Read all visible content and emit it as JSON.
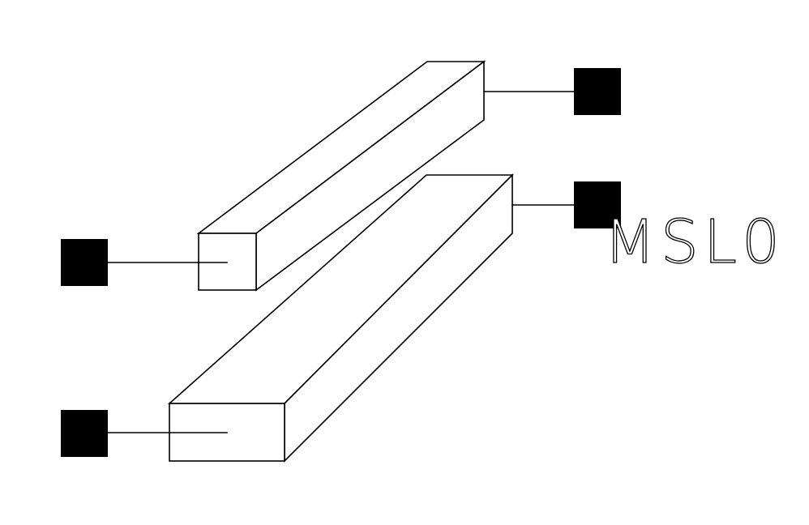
{
  "component": {
    "label": "MSL0",
    "type": "coupled-microstrip-lines",
    "line_count": 2,
    "pin_count": 4
  },
  "colors": {
    "background": "#ffffff",
    "stroke": "#000000",
    "pin_fill": "#000000"
  },
  "icons": {
    "pin": "filled-square-pin"
  }
}
